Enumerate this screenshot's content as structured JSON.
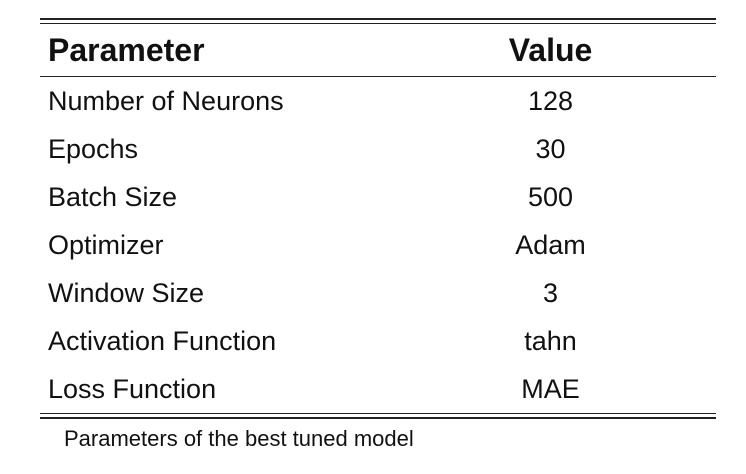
{
  "table": {
    "headers": {
      "parameter": "Parameter",
      "value": "Value"
    },
    "rows": [
      {
        "parameter": "Number of Neurons",
        "value": "128"
      },
      {
        "parameter": "Epochs",
        "value": "30"
      },
      {
        "parameter": "Batch Size",
        "value": "500"
      },
      {
        "parameter": "Optimizer",
        "value": "Adam"
      },
      {
        "parameter": "Window Size",
        "value": "3"
      },
      {
        "parameter": "Activation Function",
        "value": "tahn"
      },
      {
        "parameter": "Loss Function",
        "value": "MAE"
      }
    ]
  },
  "caption": "Parameters of the best tuned model"
}
